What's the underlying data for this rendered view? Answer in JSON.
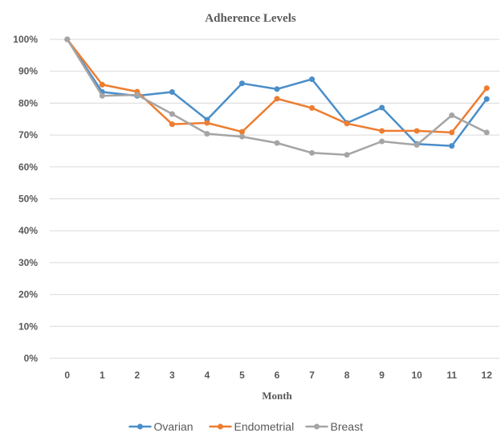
{
  "chart_data": {
    "type": "line",
    "title": "Adherence Levels",
    "xlabel": "Month",
    "ylabel": "",
    "x": [
      0,
      1,
      2,
      3,
      4,
      5,
      6,
      7,
      8,
      9,
      10,
      11,
      12
    ],
    "ylim": [
      0,
      100
    ],
    "yticks": [
      "0%",
      "10%",
      "20%",
      "30%",
      "40%",
      "50%",
      "60%",
      "70%",
      "80%",
      "90%",
      "100%"
    ],
    "grid": true,
    "legend_position": "bottom",
    "series": [
      {
        "name": "Ovarian",
        "color": "#4a8ec9",
        "values": [
          100,
          83.5,
          82.3,
          83.5,
          74.8,
          86.2,
          84.4,
          87.5,
          73.8,
          78.6,
          67.2,
          66.6,
          81.3
        ]
      },
      {
        "name": "Endometrial",
        "color": "#ed7d31",
        "values": [
          100,
          85.8,
          83.6,
          73.4,
          73.8,
          71.0,
          81.4,
          78.5,
          73.6,
          71.3,
          71.3,
          70.8,
          84.7
        ]
      },
      {
        "name": "Breast",
        "color": "#a5a5a5",
        "values": [
          100,
          82.3,
          82.6,
          76.6,
          70.4,
          69.5,
          67.5,
          64.4,
          63.8,
          68.0,
          66.9,
          76.2,
          70.8
        ]
      }
    ]
  }
}
